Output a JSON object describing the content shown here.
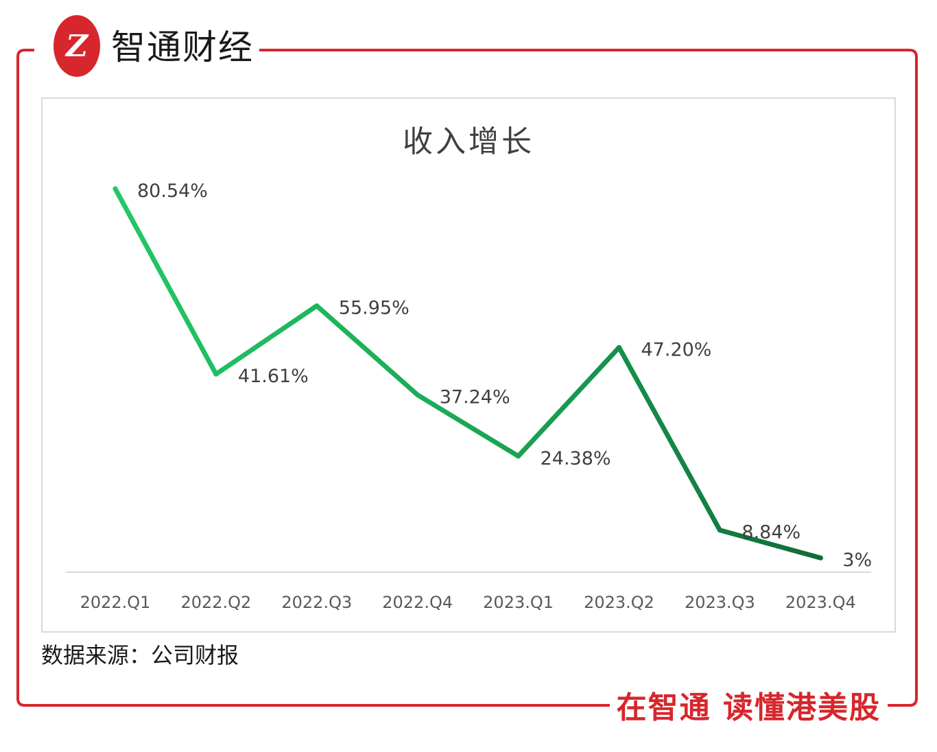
{
  "brand": {
    "logo_text": "Z",
    "name": "智通财经",
    "slogan": "在智通  读懂港美股",
    "color": "#d7262c"
  },
  "source_note": "数据来源：公司财报",
  "chart_data": {
    "type": "line",
    "title": "收入增长",
    "categories": [
      "2022.Q1",
      "2022.Q2",
      "2022.Q3",
      "2022.Q4",
      "2023.Q1",
      "2023.Q2",
      "2023.Q3",
      "2023.Q4"
    ],
    "values": [
      80.54,
      41.61,
      55.95,
      37.24,
      24.38,
      47.2,
      8.84,
      3
    ],
    "value_labels": [
      "80.54%",
      "41.61%",
      "55.95%",
      "37.24%",
      "24.38%",
      "47.20%",
      "8.84%",
      "3%"
    ],
    "ylim": [
      0,
      100
    ],
    "grid": false,
    "legend": "none",
    "line_color_start": "#22c866",
    "line_color_end": "#0f6b3a",
    "label_color": "#404040",
    "tick_color": "#595959"
  }
}
